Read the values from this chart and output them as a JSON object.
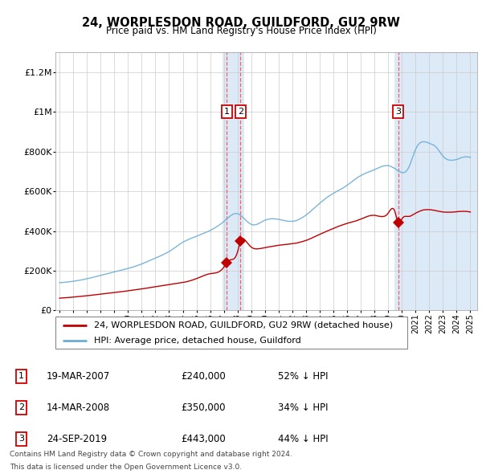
{
  "title": "24, WORPLESDON ROAD, GUILDFORD, GU2 9RW",
  "subtitle": "Price paid vs. HM Land Registry's House Price Index (HPI)",
  "hpi_label": "HPI: Average price, detached house, Guildford",
  "property_label": "24, WORPLESDON ROAD, GUILDFORD, GU2 9RW (detached house)",
  "footer1": "Contains HM Land Registry data © Crown copyright and database right 2024.",
  "footer2": "This data is licensed under the Open Government Licence v3.0.",
  "transactions": [
    {
      "num": 1,
      "date": "19-MAR-2007",
      "price": "£240,000",
      "pct": "52% ↓ HPI",
      "year": 2007.21,
      "value": 240000
    },
    {
      "num": 2,
      "date": "14-MAR-2008",
      "price": "£350,000",
      "pct": "34% ↓ HPI",
      "year": 2008.21,
      "value": 350000
    },
    {
      "num": 3,
      "date": "24-SEP-2019",
      "price": "£443,000",
      "pct": "44% ↓ HPI",
      "year": 2019.73,
      "value": 443000
    }
  ],
  "hpi_color": "#6baed6",
  "property_color": "#c00000",
  "vline_color": "#ff4444",
  "bg_highlight_color": "#dce9f7",
  "ylim": [
    0,
    1300000
  ],
  "yticks": [
    0,
    200000,
    400000,
    600000,
    800000,
    1000000,
    1200000
  ],
  "ytick_labels": [
    "£0",
    "£200K",
    "£400K",
    "£600K",
    "£800K",
    "£1M",
    "£1.2M"
  ],
  "xlim_left": 1994.7,
  "xlim_right": 2025.5
}
